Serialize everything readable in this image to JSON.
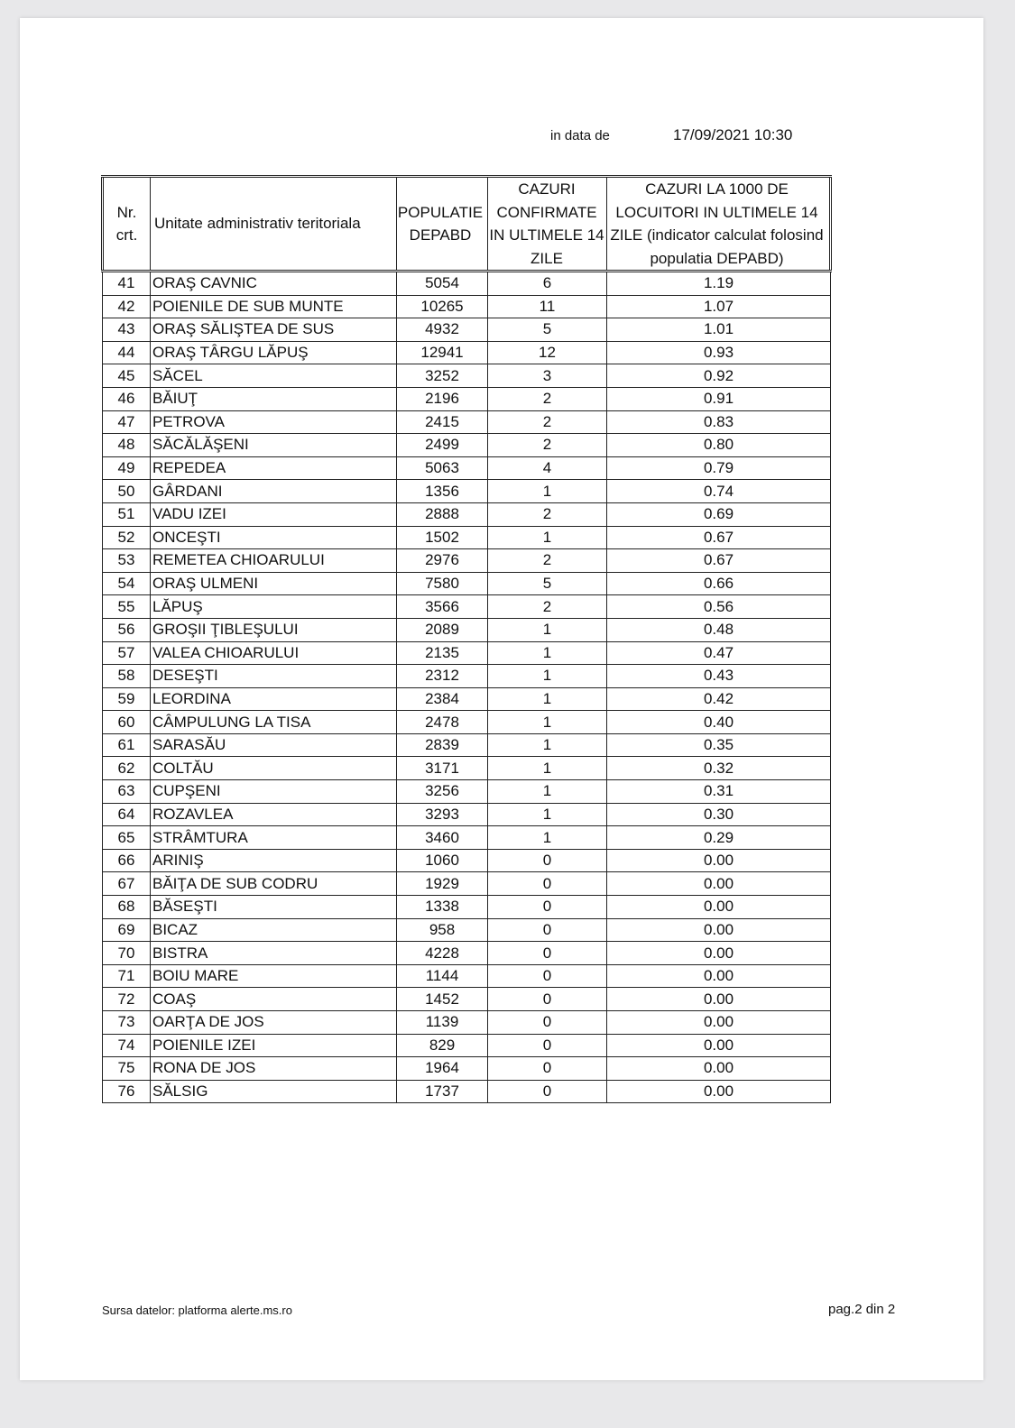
{
  "header": {
    "date_label": "in data de",
    "date_value": "17/09/2021 10:30"
  },
  "table": {
    "columns": [
      "Nr. crt.",
      "Unitate administrativ teritoriala",
      "POPULATIE DEPABD",
      "CAZURI CONFIRMATE IN ULTIMELE 14 ZILE",
      "CAZURI LA 1000 DE LOCUITORI IN ULTIMELE 14 ZILE (indicator calculat folosind populatia DEPABD)"
    ],
    "rows": [
      [
        "41",
        "ORAŞ CAVNIC",
        "5054",
        "6",
        "1.19"
      ],
      [
        "42",
        "POIENILE DE SUB MUNTE",
        "10265",
        "11",
        "1.07"
      ],
      [
        "43",
        "ORAŞ SĂLIŞTEA DE SUS",
        "4932",
        "5",
        "1.01"
      ],
      [
        "44",
        "ORAŞ TÂRGU LĂPUŞ",
        "12941",
        "12",
        "0.93"
      ],
      [
        "45",
        "SĂCEL",
        "3252",
        "3",
        "0.92"
      ],
      [
        "46",
        "BĂIUŢ",
        "2196",
        "2",
        "0.91"
      ],
      [
        "47",
        "PETROVA",
        "2415",
        "2",
        "0.83"
      ],
      [
        "48",
        "SĂCĂLĂŞENI",
        "2499",
        "2",
        "0.80"
      ],
      [
        "49",
        "REPEDEA",
        "5063",
        "4",
        "0.79"
      ],
      [
        "50",
        "GÂRDANI",
        "1356",
        "1",
        "0.74"
      ],
      [
        "51",
        "VADU IZEI",
        "2888",
        "2",
        "0.69"
      ],
      [
        "52",
        "ONCEŞTI",
        "1502",
        "1",
        "0.67"
      ],
      [
        "53",
        "REMETEA CHIOARULUI",
        "2976",
        "2",
        "0.67"
      ],
      [
        "54",
        "ORAŞ ULMENI",
        "7580",
        "5",
        "0.66"
      ],
      [
        "55",
        "LĂPUŞ",
        "3566",
        "2",
        "0.56"
      ],
      [
        "56",
        "GROŞII ŢIBLEŞULUI",
        "2089",
        "1",
        "0.48"
      ],
      [
        "57",
        "VALEA CHIOARULUI",
        "2135",
        "1",
        "0.47"
      ],
      [
        "58",
        "DESEŞTI",
        "2312",
        "1",
        "0.43"
      ],
      [
        "59",
        "LEORDINA",
        "2384",
        "1",
        "0.42"
      ],
      [
        "60",
        "CÂMPULUNG LA TISA",
        "2478",
        "1",
        "0.40"
      ],
      [
        "61",
        "SARASĂU",
        "2839",
        "1",
        "0.35"
      ],
      [
        "62",
        "COLTĂU",
        "3171",
        "1",
        "0.32"
      ],
      [
        "63",
        "CUPŞENI",
        "3256",
        "1",
        "0.31"
      ],
      [
        "64",
        "ROZAVLEA",
        "3293",
        "1",
        "0.30"
      ],
      [
        "65",
        "STRÂMTURA",
        "3460",
        "1",
        "0.29"
      ],
      [
        "66",
        "ARINIŞ",
        "1060",
        "0",
        "0.00"
      ],
      [
        "67",
        "BĂIŢA DE SUB CODRU",
        "1929",
        "0",
        "0.00"
      ],
      [
        "68",
        "BĂSEŞTI",
        "1338",
        "0",
        "0.00"
      ],
      [
        "69",
        "BICAZ",
        "958",
        "0",
        "0.00"
      ],
      [
        "70",
        "BISTRA",
        "4228",
        "0",
        "0.00"
      ],
      [
        "71",
        "BOIU MARE",
        "1144",
        "0",
        "0.00"
      ],
      [
        "72",
        "COAŞ",
        "1452",
        "0",
        "0.00"
      ],
      [
        "73",
        "OARŢA DE JOS",
        "1139",
        "0",
        "0.00"
      ],
      [
        "74",
        "POIENILE IZEI",
        "829",
        "0",
        "0.00"
      ],
      [
        "75",
        "RONA DE JOS",
        "1964",
        "0",
        "0.00"
      ],
      [
        "76",
        "SĂLSIG",
        "1737",
        "0",
        "0.00"
      ]
    ]
  },
  "footer": {
    "source": "Sursa datelor:  platforma  alerte.ms.ro",
    "page": "pag.2 din 2"
  }
}
